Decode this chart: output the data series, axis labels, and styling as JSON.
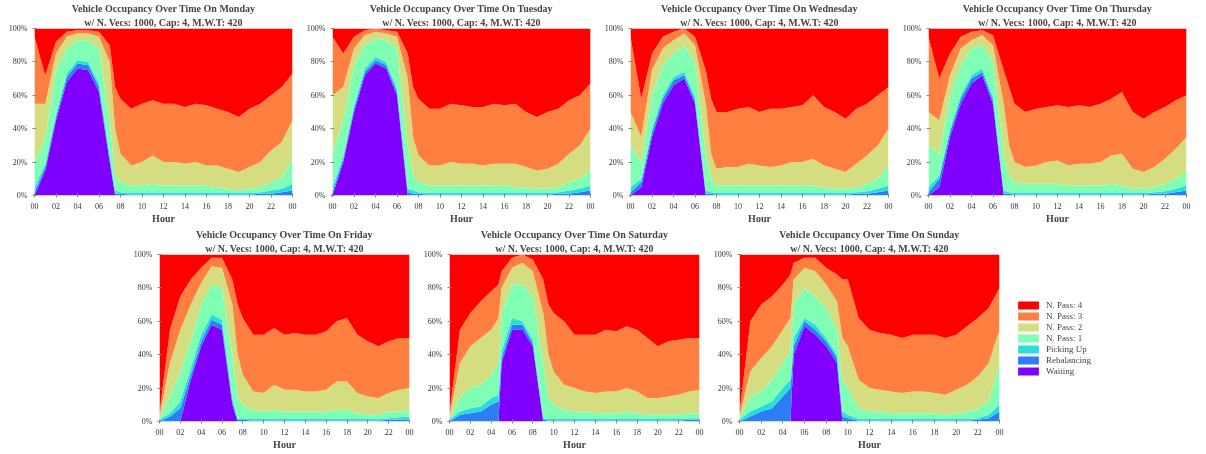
{
  "chart_data": [
    {
      "type": "area",
      "stacked": true,
      "title": "Vehicle Occupancy Over Time On Monday",
      "subtitle": "w/ N. Vecs: 1000, Cap: 4, M.W.T: 420",
      "xlabel": "Hour",
      "x": [
        0,
        1,
        2,
        3,
        4,
        5,
        6,
        7,
        7.5,
        8,
        9,
        10,
        11,
        12,
        13,
        14,
        15,
        16,
        17,
        18,
        19,
        20,
        21,
        22,
        23,
        24
      ],
      "xlim": [
        0,
        24
      ],
      "xticks": [
        {
          "value": 0,
          "label": "00"
        },
        {
          "value": 2,
          "label": "02"
        },
        {
          "value": 4,
          "label": "04"
        },
        {
          "value": 6,
          "label": "06"
        },
        {
          "value": 8,
          "label": "08"
        },
        {
          "value": 10,
          "label": "10"
        },
        {
          "value": 12,
          "label": "12"
        },
        {
          "value": 14,
          "label": "14"
        },
        {
          "value": 16,
          "label": "16"
        },
        {
          "value": 18,
          "label": "18"
        },
        {
          "value": 20,
          "label": "20"
        },
        {
          "value": 22,
          "label": "22"
        },
        {
          "value": 24,
          "label": "00"
        }
      ],
      "ylim": [
        0,
        100
      ],
      "yticks": [
        {
          "value": 0,
          "label": "0%"
        },
        {
          "value": 20,
          "label": "20%"
        },
        {
          "value": 40,
          "label": "40%"
        },
        {
          "value": 60,
          "label": "60%"
        },
        {
          "value": 80,
          "label": "80%"
        },
        {
          "value": 100,
          "label": "100%"
        }
      ],
      "series": [
        {
          "color": "#8000ff",
          "values": [
            0,
            15,
            45,
            68,
            76,
            75,
            62,
            20,
            0,
            0,
            0,
            0,
            0,
            0,
            0,
            0,
            0,
            0,
            0,
            0,
            0,
            0,
            0,
            0,
            0,
            0
          ]
        },
        {
          "color": "#2c7ef7",
          "values": [
            2,
            2,
            2,
            3,
            3,
            3,
            3,
            2,
            1,
            1,
            0.5,
            0.5,
            0.5,
            0.5,
            0.5,
            0.5,
            0.5,
            0.5,
            0.5,
            0.5,
            0.5,
            0.5,
            1,
            1,
            2,
            3
          ]
        },
        {
          "color": "#2adddd",
          "values": [
            3,
            2,
            2,
            2,
            2,
            2,
            2,
            2,
            2,
            1,
            1,
            1,
            1,
            1,
            1,
            1,
            1,
            1,
            1,
            1,
            1,
            1,
            1,
            2,
            2,
            4
          ]
        },
        {
          "color": "#80ffb4",
          "values": [
            15,
            16,
            26,
            15,
            12,
            13,
            21,
            21,
            9,
            6,
            4.5,
            4.5,
            5.5,
            4.5,
            4.5,
            4.5,
            4.5,
            4.5,
            3.5,
            2.5,
            1.5,
            2.5,
            3,
            5,
            7,
            15
          ]
        },
        {
          "color": "#d4dd80",
          "values": [
            35,
            20,
            10,
            7,
            4,
            4,
            7,
            35,
            28,
            17,
            12,
            14,
            17,
            14,
            14,
            13,
            14,
            12,
            13,
            12,
            11,
            13,
            15,
            19,
            21,
            23
          ]
        },
        {
          "color": "#ff7f41",
          "values": [
            40,
            17,
            7,
            3,
            2,
            2,
            3,
            10,
            25,
            33,
            34,
            35,
            33,
            35,
            35,
            34,
            35,
            36,
            34,
            34,
            33,
            35,
            35,
            33,
            33,
            28
          ]
        },
        {
          "color": "#ff0000",
          "values": [
            5,
            28,
            8,
            2,
            1,
            1,
            2,
            10,
            35,
            42,
            48,
            45,
            43,
            45,
            45,
            47,
            45,
            46,
            48,
            50,
            53,
            48,
            45,
            40,
            35,
            27
          ]
        }
      ]
    },
    {
      "type": "area",
      "stacked": true,
      "title": "Vehicle Occupancy Over Time On Tuesday",
      "subtitle": "w/ N. Vecs: 1000, Cap: 4, M.W.T: 420",
      "xlabel": "Hour",
      "x": [
        0,
        1,
        2,
        3,
        4,
        5,
        6,
        7,
        7.5,
        8,
        9,
        10,
        11,
        12,
        13,
        14,
        15,
        16,
        17,
        18,
        19,
        20,
        21,
        22,
        23,
        24
      ],
      "xlim": [
        0,
        24
      ],
      "xticks": [
        {
          "value": 0,
          "label": "00"
        },
        {
          "value": 2,
          "label": "02"
        },
        {
          "value": 4,
          "label": "04"
        },
        {
          "value": 6,
          "label": "06"
        },
        {
          "value": 8,
          "label": "08"
        },
        {
          "value": 10,
          "label": "10"
        },
        {
          "value": 12,
          "label": "12"
        },
        {
          "value": 14,
          "label": "14"
        },
        {
          "value": 16,
          "label": "16"
        },
        {
          "value": 18,
          "label": "18"
        },
        {
          "value": 20,
          "label": "20"
        },
        {
          "value": 22,
          "label": "22"
        },
        {
          "value": 24,
          "label": "00"
        }
      ],
      "ylim": [
        0,
        100
      ],
      "yticks": [
        {
          "value": 0,
          "label": "0%"
        },
        {
          "value": 20,
          "label": "20%"
        },
        {
          "value": 40,
          "label": "40%"
        },
        {
          "value": 60,
          "label": "60%"
        },
        {
          "value": 80,
          "label": "80%"
        },
        {
          "value": 100,
          "label": "100%"
        }
      ],
      "series": [
        {
          "color": "#8000ff",
          "values": [
            0,
            20,
            50,
            72,
            79,
            76,
            60,
            0,
            0,
            0,
            0,
            0,
            0,
            0,
            0,
            0,
            0,
            0,
            0,
            0,
            0,
            0,
            0,
            0,
            0,
            0
          ]
        },
        {
          "color": "#2c7ef7",
          "values": [
            2,
            2,
            2,
            2,
            2,
            2,
            2,
            2,
            1,
            1,
            0.5,
            0.5,
            0.5,
            0.5,
            0.5,
            0.5,
            0.5,
            0.5,
            0.5,
            0.5,
            0.5,
            0.5,
            1,
            1,
            2,
            3
          ]
        },
        {
          "color": "#2adddd",
          "values": [
            3,
            2,
            2,
            2,
            2,
            2,
            2,
            2,
            2,
            1,
            1,
            1,
            1,
            1,
            1,
            1,
            1,
            1,
            1,
            1,
            1,
            1,
            1,
            2,
            2,
            3
          ]
        },
        {
          "color": "#80ffb4",
          "values": [
            20,
            21,
            24,
            14,
            11,
            13,
            24,
            26,
            9,
            6,
            4.5,
            4.5,
            4.5,
            4.5,
            4.5,
            4.5,
            4.5,
            4.5,
            3.5,
            3.5,
            2.5,
            2.5,
            3,
            5,
            6,
            9
          ]
        },
        {
          "color": "#d4dd80",
          "values": [
            35,
            20,
            10,
            6,
            4,
            4,
            7,
            40,
            23,
            16,
            12,
            12,
            14,
            13,
            13,
            12,
            13,
            13,
            14,
            12,
            11,
            12,
            14,
            17,
            20,
            25
          ]
        },
        {
          "color": "#ff7f41",
          "values": [
            35,
            20,
            7,
            3,
            2,
            2,
            3,
            15,
            30,
            34,
            34,
            34,
            35,
            35,
            34,
            35,
            36,
            35,
            36,
            33,
            32,
            34,
            33,
            32,
            30,
            27
          ]
        },
        {
          "color": "#ff0000",
          "values": [
            5,
            15,
            5,
            1,
            0,
            1,
            2,
            15,
            35,
            42,
            48,
            48,
            45,
            46,
            47,
            47,
            45,
            46,
            45,
            50,
            53,
            50,
            48,
            43,
            40,
            33
          ]
        }
      ]
    },
    {
      "type": "area",
      "stacked": true,
      "title": "Vehicle Occupancy Over Time On Wednesday",
      "subtitle": "w/ N. Vecs: 1000, Cap: 4, M.W.T: 420",
      "xlabel": "Hour",
      "x": [
        0,
        1,
        2,
        3,
        4,
        5,
        6,
        7,
        7.5,
        8,
        9,
        10,
        11,
        12,
        13,
        14,
        15,
        16,
        17,
        18,
        19,
        20,
        21,
        22,
        23,
        24
      ],
      "xlim": [
        0,
        24
      ],
      "xticks": [
        {
          "value": 0,
          "label": "00"
        },
        {
          "value": 2,
          "label": "02"
        },
        {
          "value": 4,
          "label": "04"
        },
        {
          "value": 6,
          "label": "06"
        },
        {
          "value": 8,
          "label": "08"
        },
        {
          "value": 10,
          "label": "10"
        },
        {
          "value": 12,
          "label": "12"
        },
        {
          "value": 14,
          "label": "14"
        },
        {
          "value": 16,
          "label": "16"
        },
        {
          "value": 18,
          "label": "18"
        },
        {
          "value": 20,
          "label": "20"
        },
        {
          "value": 22,
          "label": "22"
        },
        {
          "value": 24,
          "label": "00"
        }
      ],
      "ylim": [
        0,
        100
      ],
      "yticks": [
        {
          "value": 0,
          "label": "0%"
        },
        {
          "value": 20,
          "label": "20%"
        },
        {
          "value": 40,
          "label": "40%"
        },
        {
          "value": 60,
          "label": "60%"
        },
        {
          "value": 80,
          "label": "80%"
        },
        {
          "value": 100,
          "label": "100%"
        }
      ],
      "series": [
        {
          "color": "#8000ff",
          "values": [
            0,
            5,
            35,
            55,
            66,
            70,
            55,
            0,
            0,
            0,
            0,
            0,
            0,
            0,
            0,
            0,
            0,
            0,
            0,
            0,
            0,
            0,
            0,
            0,
            0,
            0
          ]
        },
        {
          "color": "#2c7ef7",
          "values": [
            2,
            3,
            3,
            3,
            3,
            2,
            2,
            1,
            1,
            0.5,
            0.5,
            0.5,
            0.5,
            0.5,
            0.5,
            0.5,
            0.5,
            0.5,
            0.5,
            0.5,
            0.5,
            0.5,
            1,
            1,
            2,
            3
          ]
        },
        {
          "color": "#2adddd",
          "values": [
            3,
            2,
            2,
            2,
            2,
            2,
            2,
            2,
            1,
            1,
            1,
            1,
            1,
            1,
            1,
            1,
            1,
            1,
            1,
            1,
            1,
            1,
            1,
            1.5,
            2,
            3
          ]
        },
        {
          "color": "#80ffb4",
          "values": [
            25,
            10,
            20,
            18,
            14,
            16,
            21,
            22,
            8,
            4.5,
            4.5,
            4.5,
            4.5,
            4.5,
            4.5,
            4.5,
            4.5,
            4.5,
            4.5,
            3.5,
            2.5,
            2.5,
            3,
            4.5,
            6,
            12
          ]
        },
        {
          "color": "#d4dd80",
          "values": [
            20,
            15,
            15,
            10,
            8,
            7,
            10,
            30,
            15,
            10,
            11,
            11,
            13,
            12,
            11,
            12,
            14,
            14,
            16,
            13,
            12,
            10,
            14,
            17,
            20,
            22
          ]
        },
        {
          "color": "#ff7f41",
          "values": [
            45,
            23,
            10,
            7,
            5,
            3,
            5,
            20,
            33,
            34,
            33,
            35,
            34,
            32,
            35,
            34,
            33,
            34,
            38,
            35,
            34,
            32,
            33,
            31,
            30,
            25
          ]
        },
        {
          "color": "#ff0000",
          "values": [
            5,
            42,
            15,
            5,
            2,
            0,
            5,
            25,
            42,
            50,
            50,
            48,
            47,
            50,
            48,
            48,
            47,
            46,
            40,
            47,
            50,
            54,
            48,
            45,
            40,
            35
          ]
        }
      ]
    },
    {
      "type": "area",
      "stacked": true,
      "title": "Vehicle Occupancy Over Time On Thursday",
      "subtitle": "w/ N. Vecs: 1000, Cap: 4, M.W.T: 420",
      "xlabel": "Hour",
      "x": [
        0,
        1,
        2,
        3,
        4,
        5,
        6,
        7,
        7.5,
        8,
        9,
        10,
        11,
        12,
        13,
        14,
        15,
        16,
        17,
        18,
        19,
        20,
        21,
        22,
        23,
        24
      ],
      "xlim": [
        0,
        24
      ],
      "xticks": [
        {
          "value": 0,
          "label": "00"
        },
        {
          "value": 2,
          "label": "02"
        },
        {
          "value": 4,
          "label": "04"
        },
        {
          "value": 6,
          "label": "06"
        },
        {
          "value": 8,
          "label": "08"
        },
        {
          "value": 10,
          "label": "10"
        },
        {
          "value": 12,
          "label": "12"
        },
        {
          "value": 14,
          "label": "14"
        },
        {
          "value": 16,
          "label": "16"
        },
        {
          "value": 18,
          "label": "18"
        },
        {
          "value": 20,
          "label": "20"
        },
        {
          "value": 22,
          "label": "22"
        },
        {
          "value": 24,
          "label": "00"
        }
      ],
      "ylim": [
        0,
        100
      ],
      "yticks": [
        {
          "value": 0,
          "label": "0%"
        },
        {
          "value": 20,
          "label": "20%"
        },
        {
          "value": 40,
          "label": "40%"
        },
        {
          "value": 60,
          "label": "60%"
        },
        {
          "value": 80,
          "label": "80%"
        },
        {
          "value": 100,
          "label": "100%"
        }
      ],
      "series": [
        {
          "color": "#8000ff",
          "values": [
            0,
            5,
            35,
            55,
            67,
            72,
            55,
            0,
            0,
            0,
            0,
            0,
            0,
            0,
            0,
            0,
            0,
            0,
            0,
            0,
            0,
            0,
            0,
            0,
            0,
            0
          ]
        },
        {
          "color": "#2c7ef7",
          "values": [
            2,
            5,
            3,
            3,
            3,
            2,
            2,
            1,
            1,
            0.5,
            0.5,
            0.5,
            0.5,
            0.5,
            0.5,
            0.5,
            0.5,
            0.5,
            0.5,
            0.5,
            0.5,
            0.5,
            1,
            1,
            2,
            3
          ]
        },
        {
          "color": "#2adddd",
          "values": [
            3,
            2,
            2,
            2,
            2,
            2,
            2,
            2,
            1,
            1,
            1,
            1,
            1,
            1,
            1,
            1,
            1,
            1,
            1,
            1,
            1,
            1,
            1,
            1.5,
            2,
            3
          ]
        },
        {
          "color": "#80ffb4",
          "values": [
            25,
            13,
            20,
            18,
            16,
            14,
            21,
            22,
            10,
            6.5,
            5.5,
            5.5,
            5.5,
            5.5,
            4.5,
            4.5,
            4.5,
            4.5,
            5.5,
            4.5,
            2.5,
            2.5,
            3,
            4.5,
            6,
            9
          ]
        },
        {
          "color": "#d4dd80",
          "values": [
            20,
            20,
            12,
            10,
            5,
            6,
            10,
            30,
            18,
            12,
            10,
            11,
            13,
            14,
            12,
            13,
            13,
            14,
            17,
            19,
            12,
            10,
            12,
            15,
            18,
            20
          ]
        },
        {
          "color": "#ff7f41",
          "values": [
            45,
            25,
            13,
            7,
            5,
            3,
            6,
            20,
            35,
            35,
            33,
            34,
            33,
            33,
            35,
            35,
            34,
            35,
            34,
            37,
            34,
            32,
            33,
            31,
            29,
            25
          ]
        },
        {
          "color": "#ff0000",
          "values": [
            5,
            30,
            15,
            5,
            2,
            1,
            4,
            25,
            35,
            45,
            50,
            48,
            47,
            46,
            47,
            46,
            47,
            45,
            42,
            38,
            50,
            54,
            50,
            47,
            43,
            40
          ]
        }
      ]
    },
    {
      "type": "area",
      "stacked": true,
      "title": "Vehicle Occupancy Over Time On Friday",
      "subtitle": "w/ N. Vecs: 1000, Cap: 4, M.W.T: 420",
      "xlabel": "Hour",
      "x": [
        0,
        1,
        2,
        3,
        4,
        5,
        6,
        7,
        7.5,
        8,
        9,
        10,
        11,
        12,
        13,
        14,
        15,
        16,
        17,
        18,
        19,
        20,
        21,
        22,
        23,
        24
      ],
      "xlim": [
        0,
        24
      ],
      "xticks": [
        {
          "value": 0,
          "label": "00"
        },
        {
          "value": 2,
          "label": "02"
        },
        {
          "value": 4,
          "label": "04"
        },
        {
          "value": 6,
          "label": "06"
        },
        {
          "value": 8,
          "label": "08"
        },
        {
          "value": 10,
          "label": "10"
        },
        {
          "value": 12,
          "label": "12"
        },
        {
          "value": 14,
          "label": "14"
        },
        {
          "value": 16,
          "label": "16"
        },
        {
          "value": 18,
          "label": "18"
        },
        {
          "value": 20,
          "label": "20"
        },
        {
          "value": 22,
          "label": "22"
        },
        {
          "value": 24,
          "label": "00"
        }
      ],
      "ylim": [
        0,
        100
      ],
      "yticks": [
        {
          "value": 0,
          "label": "0%"
        },
        {
          "value": 20,
          "label": "20%"
        },
        {
          "value": 40,
          "label": "40%"
        },
        {
          "value": 60,
          "label": "60%"
        },
        {
          "value": 80,
          "label": "80%"
        },
        {
          "value": 100,
          "label": "100%"
        }
      ],
      "series": [
        {
          "color": "#8000ff",
          "values": [
            0,
            0,
            0,
            25,
            45,
            58,
            55,
            10,
            0,
            0,
            0,
            0,
            0,
            0,
            0,
            0,
            0,
            0,
            0,
            0,
            0,
            0,
            0,
            0,
            0,
            0
          ]
        },
        {
          "color": "#2c7ef7",
          "values": [
            0,
            3,
            8,
            3,
            3,
            3,
            3,
            2,
            1,
            1,
            0.5,
            0.5,
            0.5,
            0.5,
            0.5,
            0.5,
            0.5,
            0.5,
            0.5,
            0.5,
            0.5,
            0.5,
            0.5,
            1,
            1,
            1
          ]
        },
        {
          "color": "#2adddd",
          "values": [
            1,
            2,
            4,
            4,
            4,
            3,
            3,
            2,
            1,
            1,
            1,
            1,
            1,
            1,
            1,
            1,
            1,
            1,
            1,
            1,
            1,
            1,
            1,
            1,
            1.5,
            2
          ]
        },
        {
          "color": "#80ffb4",
          "values": [
            1,
            10,
            18,
            16,
            18,
            18,
            19,
            26,
            13,
            8,
            5.5,
            4.5,
            5.5,
            4.5,
            4.5,
            4.5,
            4.5,
            4.5,
            5.5,
            5.5,
            3.5,
            2.5,
            2.5,
            4,
            3.5,
            4
          ]
        },
        {
          "color": "#d4dd80",
          "values": [
            1,
            20,
            25,
            22,
            13,
            11,
            12,
            30,
            25,
            18,
            11,
            11,
            15,
            13,
            13,
            12,
            12,
            13,
            17,
            17,
            12,
            11,
            10,
            11,
            13,
            13
          ]
        },
        {
          "color": "#ff7f41",
          "values": [
            2,
            20,
            20,
            15,
            9,
            5,
            6,
            15,
            30,
            34,
            34,
            35,
            34,
            33,
            34,
            34,
            34,
            35,
            36,
            38,
            35,
            33,
            31,
            31,
            31,
            30
          ]
        },
        {
          "color": "#ff0000",
          "values": [
            95,
            45,
            25,
            15,
            8,
            2,
            2,
            15,
            30,
            38,
            48,
            48,
            44,
            48,
            47,
            48,
            48,
            46,
            40,
            38,
            48,
            52,
            55,
            52,
            50,
            50
          ]
        }
      ]
    },
    {
      "type": "area",
      "stacked": true,
      "title": "Vehicle Occupancy Over Time On Saturday",
      "subtitle": "w/ N. Vecs: 1000, Cap: 4, M.W.T: 420",
      "xlabel": "Hour",
      "x": [
        0,
        1,
        2,
        3,
        4,
        4.7,
        5,
        6,
        7,
        8,
        9,
        9.5,
        10,
        11,
        12,
        13,
        14,
        15,
        16,
        17,
        18,
        19,
        20,
        21,
        22,
        23,
        24
      ],
      "xlim": [
        0,
        24
      ],
      "xticks": [
        {
          "value": 0,
          "label": "00"
        },
        {
          "value": 2,
          "label": "02"
        },
        {
          "value": 4,
          "label": "04"
        },
        {
          "value": 6,
          "label": "06"
        },
        {
          "value": 8,
          "label": "08"
        },
        {
          "value": 10,
          "label": "10"
        },
        {
          "value": 12,
          "label": "12"
        },
        {
          "value": 14,
          "label": "14"
        },
        {
          "value": 16,
          "label": "16"
        },
        {
          "value": 18,
          "label": "18"
        },
        {
          "value": 20,
          "label": "20"
        },
        {
          "value": 22,
          "label": "22"
        },
        {
          "value": 24,
          "label": "00"
        }
      ],
      "ylim": [
        0,
        100
      ],
      "yticks": [
        {
          "value": 0,
          "label": "0%"
        },
        {
          "value": 20,
          "label": "20%"
        },
        {
          "value": 40,
          "label": "40%"
        },
        {
          "value": 60,
          "label": "60%"
        },
        {
          "value": 80,
          "label": "80%"
        },
        {
          "value": 100,
          "label": "100%"
        }
      ],
      "series": [
        {
          "color": "#8000ff",
          "values": [
            0,
            0,
            0,
            0,
            0,
            0,
            35,
            55,
            55,
            45,
            0,
            0,
            0,
            0,
            0,
            0,
            0,
            0,
            0,
            0,
            0,
            0,
            0,
            0,
            0,
            0,
            0
          ]
        },
        {
          "color": "#2c7ef7",
          "values": [
            0,
            4,
            5,
            6,
            10,
            12,
            3,
            3,
            3,
            2,
            1,
            0.5,
            0.5,
            0.5,
            0.5,
            0.5,
            0.5,
            0.5,
            0.5,
            0.5,
            0.5,
            0.5,
            0.5,
            0.5,
            0.5,
            1,
            1
          ]
        },
        {
          "color": "#2adddd",
          "values": [
            1,
            2,
            3,
            3,
            4,
            4,
            4,
            4,
            2,
            2,
            1,
            1,
            1,
            1,
            1,
            1,
            1,
            1,
            1,
            1,
            1,
            1,
            1,
            1,
            1,
            1,
            1
          ]
        },
        {
          "color": "#80ffb4",
          "values": [
            1,
            9,
            12,
            13,
            14,
            19,
            23,
            20,
            22,
            26,
            33,
            13.5,
            8.5,
            5.5,
            4.5,
            4.5,
            3.5,
            3.5,
            3.5,
            4.5,
            3.5,
            2.5,
            2.5,
            2.5,
            2.5,
            3,
            3
          ]
        },
        {
          "color": "#d4dd80",
          "values": [
            1,
            20,
            25,
            28,
            27,
            27,
            15,
            10,
            13,
            15,
            30,
            25,
            20,
            15,
            14,
            12,
            12,
            13,
            13,
            14,
            13,
            10,
            10,
            11,
            12,
            13,
            14
          ]
        },
        {
          "color": "#ff7f41",
          "values": [
            2,
            20,
            20,
            22,
            23,
            20,
            10,
            6,
            5,
            7,
            20,
            30,
            35,
            38,
            32,
            34,
            35,
            37,
            36,
            37,
            37,
            36,
            31,
            33,
            33,
            32,
            31
          ]
        },
        {
          "color": "#ff0000",
          "values": [
            95,
            45,
            35,
            28,
            22,
            18,
            10,
            2,
            0,
            3,
            15,
            30,
            35,
            40,
            48,
            48,
            48,
            45,
            46,
            43,
            45,
            50,
            55,
            52,
            51,
            50,
            50
          ]
        }
      ]
    },
    {
      "type": "area",
      "stacked": true,
      "title": "Vehicle Occupancy Over Time On Sunday",
      "subtitle": "w/ N. Vecs: 1000, Cap: 4, M.W.T: 420",
      "xlabel": "Hour",
      "legend": "right",
      "x": [
        0,
        1,
        2,
        3,
        4,
        4.7,
        5,
        6,
        7,
        8,
        9,
        9.5,
        10,
        11,
        12,
        13,
        14,
        15,
        16,
        17,
        18,
        19,
        20,
        21,
        22,
        23,
        24
      ],
      "xlim": [
        0,
        24
      ],
      "xticks": [
        {
          "value": 0,
          "label": "00"
        },
        {
          "value": 2,
          "label": "02"
        },
        {
          "value": 4,
          "label": "04"
        },
        {
          "value": 6,
          "label": "06"
        },
        {
          "value": 8,
          "label": "08"
        },
        {
          "value": 10,
          "label": "10"
        },
        {
          "value": 12,
          "label": "12"
        },
        {
          "value": 14,
          "label": "14"
        },
        {
          "value": 16,
          "label": "16"
        },
        {
          "value": 18,
          "label": "18"
        },
        {
          "value": 20,
          "label": "20"
        },
        {
          "value": 22,
          "label": "22"
        },
        {
          "value": 24,
          "label": "00"
        }
      ],
      "ylim": [
        0,
        100
      ],
      "yticks": [
        {
          "value": 0,
          "label": "0%"
        },
        {
          "value": 20,
          "label": "20%"
        },
        {
          "value": 40,
          "label": "40%"
        },
        {
          "value": 60,
          "label": "60%"
        },
        {
          "value": 80,
          "label": "80%"
        },
        {
          "value": 100,
          "label": "100%"
        }
      ],
      "series": [
        {
          "name": "Waiting",
          "color": "#8000ff",
          "values": [
            0,
            0,
            0,
            0,
            0,
            0,
            40,
            57,
            52,
            45,
            35,
            0,
            0,
            0,
            0,
            0,
            0,
            0,
            0,
            0,
            0,
            0,
            0,
            0,
            0,
            0,
            0
          ]
        },
        {
          "name": "Rebalancing",
          "color": "#2c7ef7",
          "values": [
            0,
            3,
            6,
            8,
            15,
            20,
            5,
            3,
            3,
            3,
            3,
            3,
            2,
            0.5,
            0.5,
            0.5,
            0.5,
            0.5,
            0.5,
            0.5,
            0.5,
            0.5,
            0.5,
            0.5,
            1,
            2,
            6
          ]
        },
        {
          "name": "Picking Up",
          "color": "#2adddd",
          "values": [
            1,
            3,
            3,
            4,
            5,
            5,
            5,
            2,
            3,
            2,
            2,
            3,
            2,
            1,
            1,
            1,
            1,
            1,
            1,
            1,
            1,
            1,
            1,
            1,
            1,
            2,
            4
          ]
        },
        {
          "name": "N. Pass: 1",
          "color": "#80ffb4",
          "values": [
            1,
            9,
            9,
            13,
            15,
            17,
            20,
            18,
            17,
            18,
            15,
            19,
            16,
            6.5,
            4.5,
            4.5,
            3.5,
            3.5,
            3.5,
            3.5,
            3.5,
            2.5,
            3.5,
            4.5,
            6,
            8,
            25
          ]
        },
        {
          "name": "N. Pass: 2",
          "color": "#d4dd80",
          "values": [
            1,
            15,
            20,
            20,
            20,
            20,
            15,
            12,
            15,
            14,
            17,
            25,
            25,
            17,
            14,
            13,
            13,
            12,
            13,
            13,
            12,
            12,
            14,
            16,
            19,
            23,
            20
          ]
        },
        {
          "name": "N. Pass: 3",
          "color": "#ff7f41",
          "values": [
            2,
            30,
            32,
            30,
            27,
            26,
            10,
            6,
            8,
            10,
            16,
            35,
            40,
            37,
            35,
            34,
            34,
            33,
            34,
            34,
            35,
            34,
            33,
            35,
            35,
            33,
            25
          ]
        },
        {
          "name": "N. Pass: 4",
          "color": "#ff0000",
          "values": [
            95,
            40,
            30,
            25,
            18,
            12,
            5,
            2,
            2,
            8,
            12,
            15,
            15,
            38,
            45,
            47,
            48,
            50,
            48,
            48,
            48,
            50,
            48,
            43,
            38,
            32,
            20
          ]
        }
      ]
    }
  ]
}
